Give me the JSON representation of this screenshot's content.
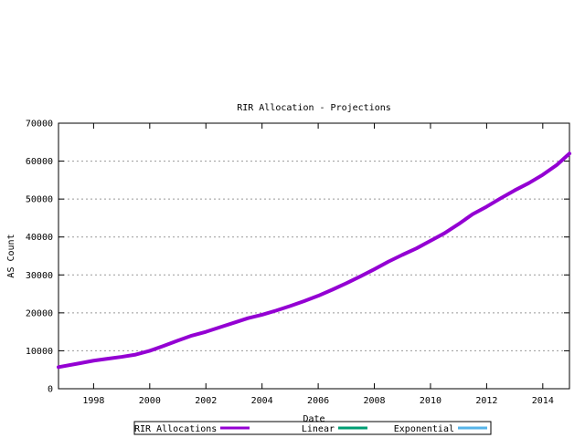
{
  "chart_data": {
    "type": "line",
    "title": "RIR Allocation - Projections",
    "xlabel": "Date",
    "ylabel": "AS Count",
    "xlim": [
      1996.75,
      2014.95
    ],
    "ylim": [
      0,
      70000
    ],
    "x_ticks": [
      1998,
      2000,
      2002,
      2004,
      2006,
      2008,
      2010,
      2012,
      2014
    ],
    "y_ticks": [
      0,
      10000,
      20000,
      30000,
      40000,
      50000,
      60000,
      70000
    ],
    "x_tick_labels": [
      "1998",
      "2000",
      "2002",
      "2004",
      "2006",
      "2008",
      "2010",
      "2012",
      "2014"
    ],
    "y_tick_labels": [
      "0",
      "10000",
      "20000",
      "30000",
      "40000",
      "50000",
      "60000",
      "70000"
    ],
    "grid": true,
    "legend_position": "bottom-center",
    "series": [
      {
        "name": "RIR Allocations",
        "color": "#9400d3",
        "x": [
          1996.75,
          1997.5,
          1998.0,
          1998.5,
          1999.0,
          1999.5,
          2000.0,
          2000.5,
          2001.0,
          2001.5,
          2002.0,
          2002.5,
          2003.0,
          2003.5,
          2004.0,
          2004.5,
          2005.0,
          2005.5,
          2006.0,
          2006.5,
          2007.0,
          2007.5,
          2008.0,
          2008.5,
          2009.0,
          2009.5,
          2010.0,
          2010.5,
          2011.0,
          2011.5,
          2012.0,
          2012.5,
          2013.0,
          2013.5,
          2014.0,
          2014.5,
          2014.95
        ],
        "y": [
          5700,
          6700,
          7400,
          7900,
          8400,
          9000,
          10000,
          11300,
          12700,
          14000,
          15000,
          16200,
          17400,
          18600,
          19500,
          20600,
          21800,
          23100,
          24500,
          26100,
          27800,
          29600,
          31500,
          33500,
          35300,
          37000,
          39000,
          41000,
          43400,
          46000,
          48000,
          50200,
          52300,
          54200,
          56400,
          59000,
          62000
        ]
      },
      {
        "name": "Linear",
        "color": "#009e73",
        "x": [],
        "y": []
      },
      {
        "name": "Exponential",
        "color": "#56b4e9",
        "x": [],
        "y": []
      }
    ]
  }
}
